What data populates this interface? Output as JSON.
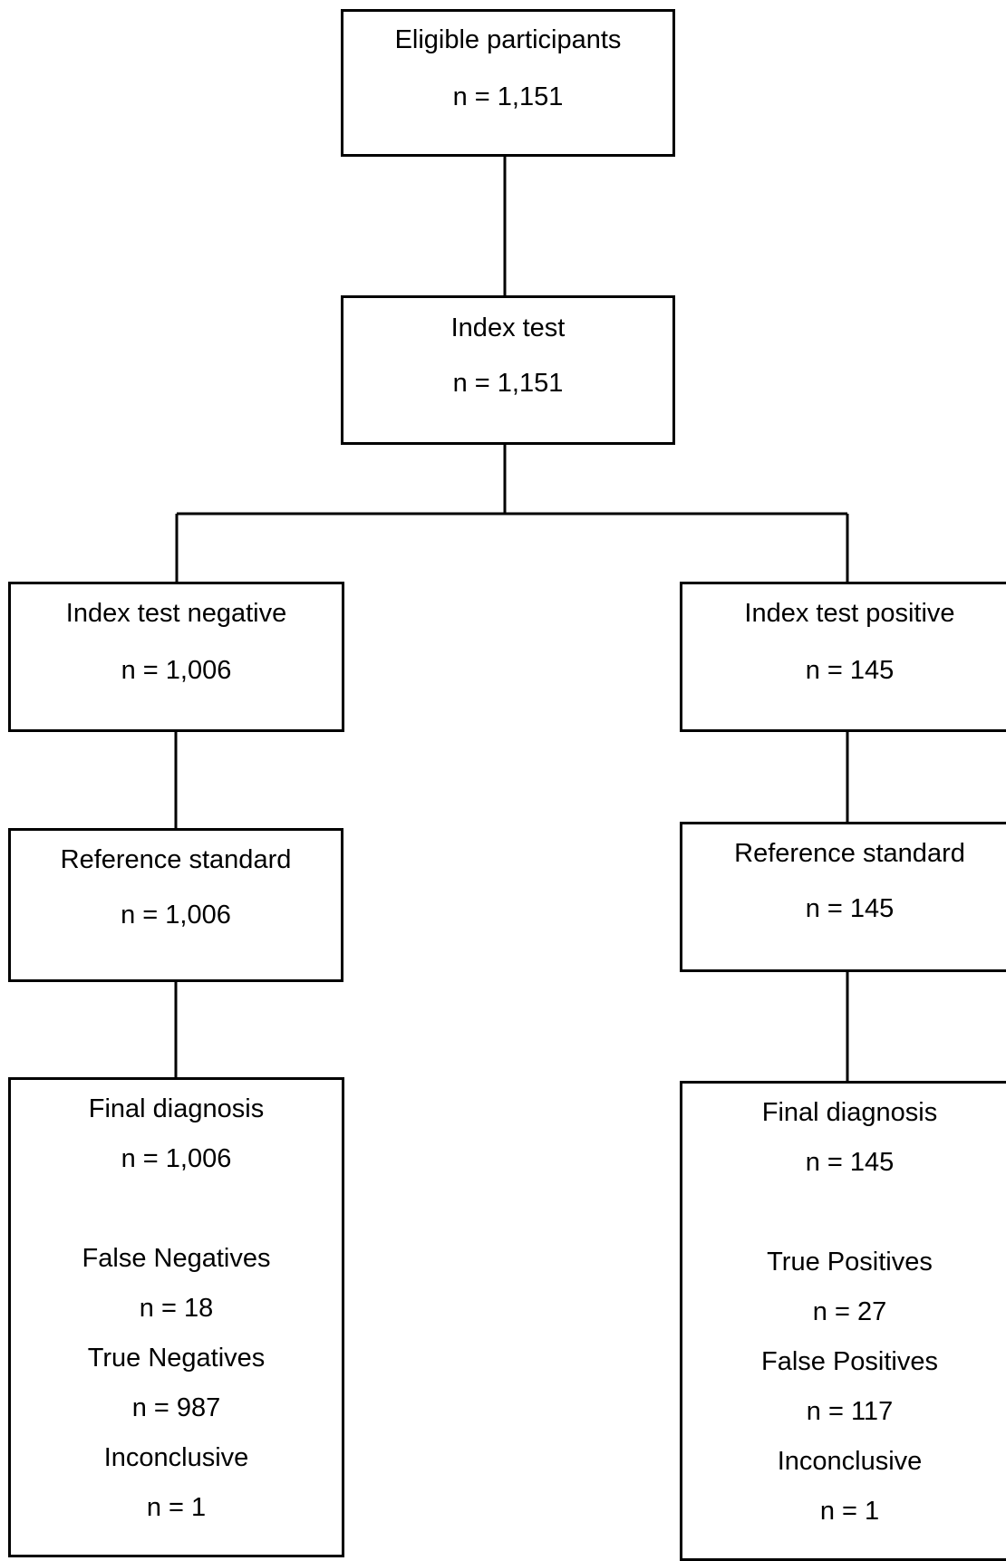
{
  "eligible": {
    "title": "Eligible participants",
    "n": "n = 1,151"
  },
  "index_test": {
    "title": "Index test",
    "n": "n = 1,151"
  },
  "negative": {
    "title": "Index test negative",
    "n": "n = 1,006",
    "reference": {
      "title": "Reference standard",
      "n": "n = 1,006"
    },
    "final": {
      "title": "Final diagnosis",
      "n": "n = 1,006",
      "items": [
        {
          "label": "False Negatives",
          "n": "n = 18"
        },
        {
          "label": "True Negatives",
          "n": "n = 987"
        },
        {
          "label": "Inconclusive",
          "n": "n = 1"
        }
      ]
    }
  },
  "positive": {
    "title": "Index test positive",
    "n": "n = 145",
    "reference": {
      "title": "Reference standard",
      "n": "n = 145"
    },
    "final": {
      "title": "Final diagnosis",
      "n": "n = 145",
      "items": [
        {
          "label": "True Positives",
          "n": "n = 27"
        },
        {
          "label": "False Positives",
          "n": "n = 117"
        },
        {
          "label": "Inconclusive",
          "n": "n = 1"
        }
      ]
    }
  }
}
